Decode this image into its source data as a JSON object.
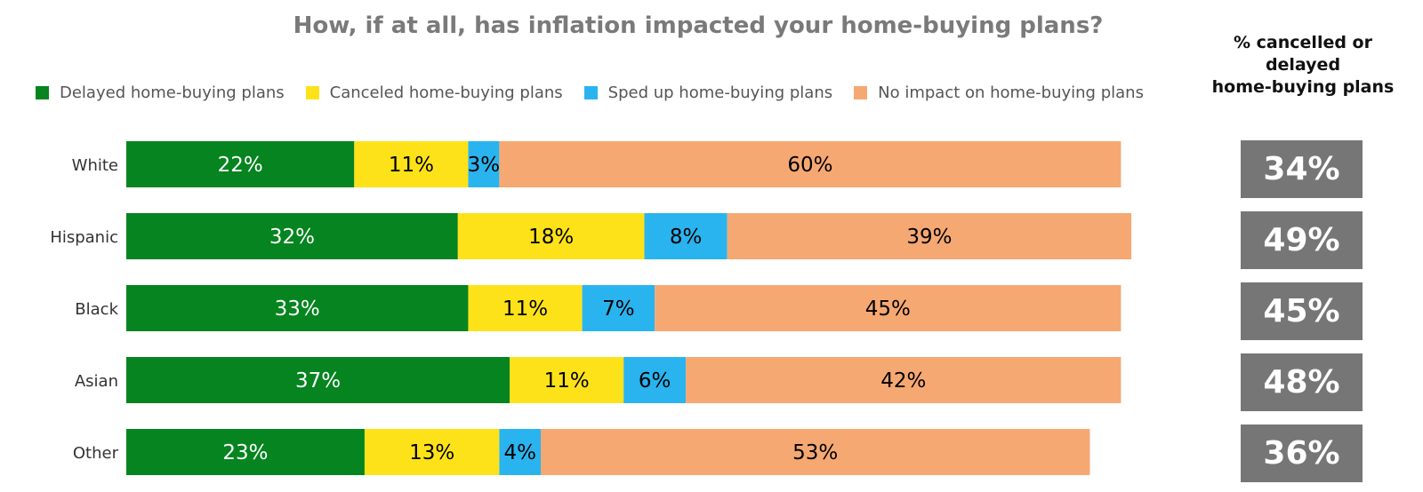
{
  "chart_data": {
    "type": "bar",
    "orientation": "horizontal",
    "stacked": true,
    "title": "How, if at all, has inflation impacted your home-buying plans?",
    "categories": [
      "White",
      "Hispanic",
      "Black",
      "Asian",
      "Other"
    ],
    "series": [
      {
        "name": "Delayed home-buying plans",
        "color": "#05841f",
        "label_color": "#ffffff",
        "values": [
          22,
          32,
          33,
          37,
          23
        ]
      },
      {
        "name": "Canceled home-buying plans",
        "color": "#fde21a",
        "label_color": "#000000",
        "values": [
          11,
          18,
          11,
          11,
          13
        ]
      },
      {
        "name": "Sped up home-buying plans",
        "color": "#2ab4ef",
        "label_color": "#000000",
        "values": [
          3,
          8,
          7,
          6,
          4
        ]
      },
      {
        "name": "No impact on home-buying plans",
        "color": "#f6a872",
        "label_color": "#000000",
        "values": [
          60,
          39,
          45,
          42,
          53
        ]
      }
    ],
    "value_format": "{v}%",
    "legend_position": "top",
    "grid": false,
    "side_panel": {
      "header": [
        "% cancelled or",
        "delayed",
        "home-buying plans"
      ],
      "values": [
        "34%",
        "49%",
        "45%",
        "48%",
        "36%"
      ],
      "box_color": "#767676"
    }
  }
}
